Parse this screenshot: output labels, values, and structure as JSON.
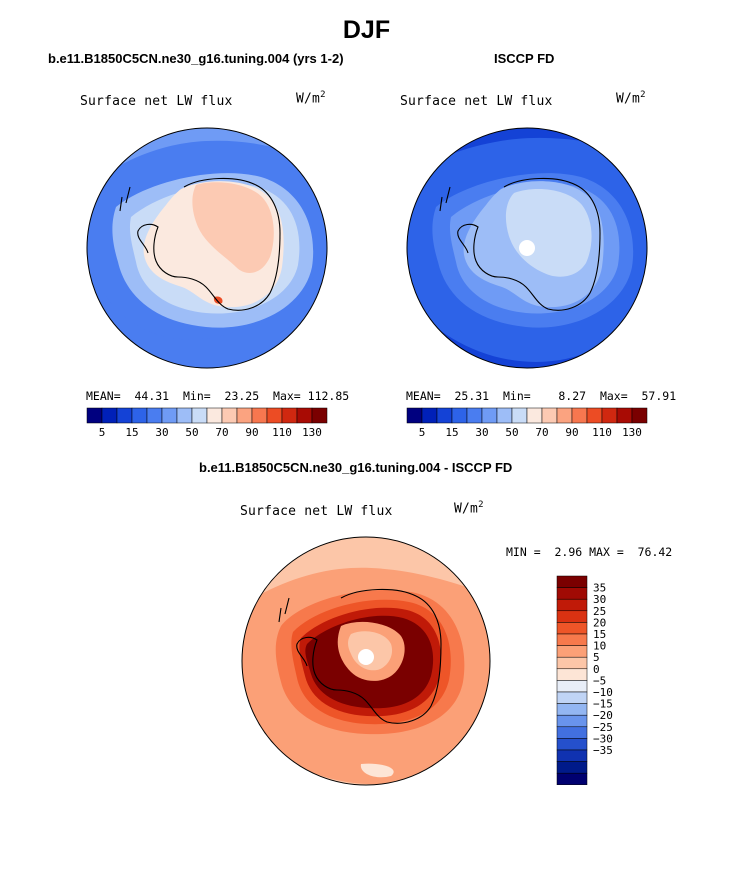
{
  "header": {
    "title": "DJF"
  },
  "panels": [
    {
      "title": "b.e11.B1850C5CN.ne30_g16.tuning.004 (yrs 1-2)",
      "field": "Surface net LW flux",
      "units_base": "W/m",
      "units_exp": "2",
      "stats": {
        "mean_label": "MEAN=",
        "mean": "44.31",
        "min_label": "Min=",
        "min": "23.25",
        "max_label": "Max=",
        "max": "112.85"
      }
    },
    {
      "title": "ISCCP FD",
      "field": "Surface net LW flux",
      "units_base": "W/m",
      "units_exp": "2",
      "stats": {
        "mean_label": "MEAN=",
        "mean": "25.31",
        "min_label": "Min=",
        "min": "8.27",
        "max_label": "Max=",
        "max": "57.91"
      }
    }
  ],
  "colorbar_abs": {
    "colors": [
      "#00007f",
      "#0020b8",
      "#1442d6",
      "#2d63e8",
      "#4a7df0",
      "#6f9bf5",
      "#9dbdf7",
      "#c9dcf7",
      "#fbe9df",
      "#fccab3",
      "#fba380",
      "#f7774f",
      "#ec4c24",
      "#d02810",
      "#a80b04",
      "#7a0000"
    ],
    "labels": [
      "5",
      "15",
      "30",
      "50",
      "70",
      "90",
      "110",
      "130"
    ]
  },
  "diff": {
    "title": "b.e11.B1850C5CN.ne30_g16.tuning.004 - ISCCP FD",
    "field": "Surface net LW flux",
    "units_base": "W/m",
    "units_exp": "2",
    "min_label": "MIN =",
    "min": "2.96",
    "max_label": "MAX =",
    "max": "76.42"
  },
  "colorbar_diff": {
    "colors": [
      "#7a0000",
      "#a00a04",
      "#c01a08",
      "#da3212",
      "#ee5528",
      "#f7794c",
      "#fba077",
      "#fcc6a8",
      "#fde5d6",
      "#e8eef8",
      "#c0d4f5",
      "#93b6f2",
      "#6994ec",
      "#4270e0",
      "#2550cc",
      "#1032b0",
      "#001a8a",
      "#000070"
    ],
    "labels": [
      "35",
      "30",
      "25",
      "20",
      "15",
      "10",
      "5",
      "0",
      "−5",
      "−10",
      "−15",
      "−20",
      "−25",
      "−30",
      "−35"
    ]
  }
}
